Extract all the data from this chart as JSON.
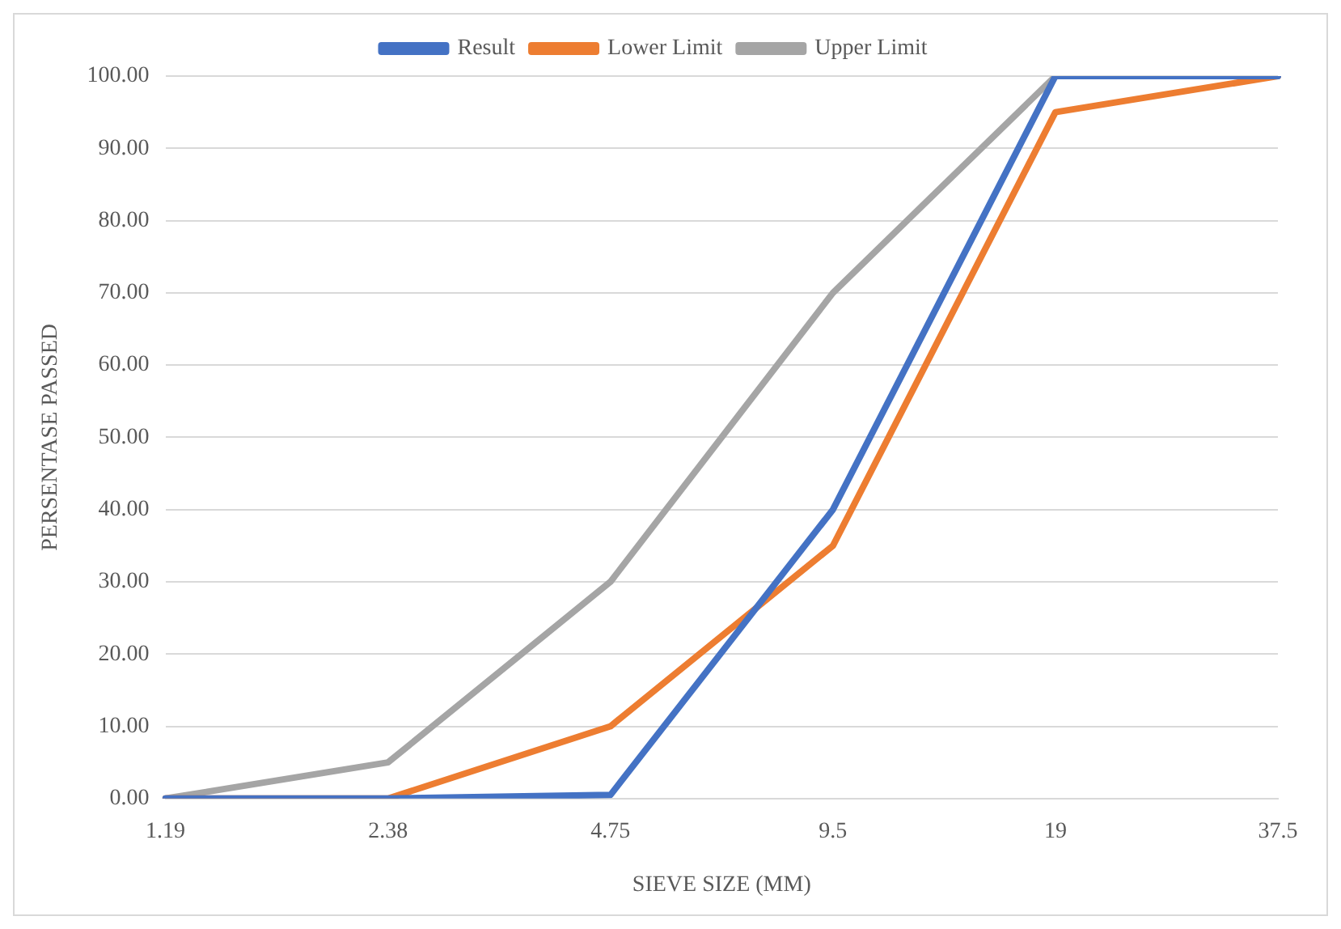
{
  "chart_data": {
    "type": "line",
    "xlabel": "SIEVE SIZE (MM)",
    "ylabel": "PERSENTASE PASSED",
    "categories": [
      "1.19",
      "2.38",
      "4.75",
      "9.5",
      "19",
      "37.5"
    ],
    "series": [
      {
        "name": "Result",
        "color": "#4472c4",
        "values": [
          0,
          0,
          0.5,
          40,
          100,
          100
        ]
      },
      {
        "name": "Lower Limit",
        "color": "#ed7d31",
        "values": [
          0,
          0,
          10,
          35,
          95,
          100
        ]
      },
      {
        "name": "Upper Limit",
        "color": "#a5a5a5",
        "values": [
          0,
          5,
          30,
          70,
          100,
          100
        ]
      }
    ],
    "ylim": [
      0,
      100
    ],
    "yticks": [
      {
        "value": 0,
        "label": "0.00"
      },
      {
        "value": 10,
        "label": "10.00"
      },
      {
        "value": 20,
        "label": "20.00"
      },
      {
        "value": 30,
        "label": "30.00"
      },
      {
        "value": 40,
        "label": "40.00"
      },
      {
        "value": 50,
        "label": "50.00"
      },
      {
        "value": 60,
        "label": "60.00"
      },
      {
        "value": 70,
        "label": "70.00"
      },
      {
        "value": 80,
        "label": "80.00"
      },
      {
        "value": 90,
        "label": "90.00"
      },
      {
        "value": 100,
        "label": "100.00"
      }
    ],
    "grid": "y",
    "legend": "top",
    "marker": "none",
    "line_style": "solid"
  }
}
